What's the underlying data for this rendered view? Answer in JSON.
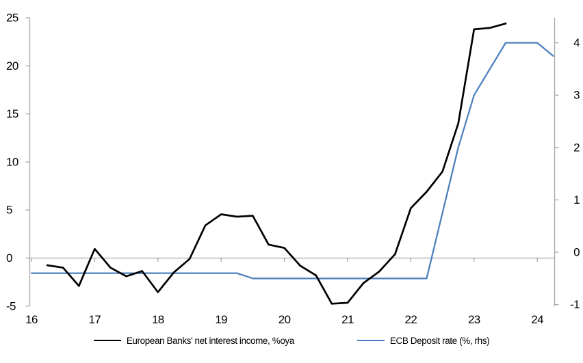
{
  "chart_data": {
    "type": "line",
    "title": "",
    "x_axis": {
      "ticks": [
        16,
        17,
        18,
        19,
        20,
        21,
        22,
        23,
        24
      ],
      "range": [
        16,
        24.3
      ],
      "tick_position": "on zero line, labels low"
    },
    "left_axis": {
      "ticks": [
        25,
        20,
        15,
        10,
        5,
        0,
        -5
      ],
      "range": [
        -5,
        25
      ]
    },
    "right_axis": {
      "ticks": [
        4,
        3,
        2,
        1,
        0,
        -1
      ],
      "range": [
        -1.05,
        4.45
      ]
    },
    "grid": "zero line only",
    "legend_position": "bottom",
    "series": [
      {
        "name": "European Banks' net interest income, %oya",
        "axis": "left",
        "color": "#000000",
        "x": [
          16.25,
          16.5,
          16.75,
          17.0,
          17.25,
          17.5,
          17.75,
          18.0,
          18.25,
          18.5,
          18.75,
          19.0,
          19.25,
          19.5,
          19.75,
          20.0,
          20.25,
          20.5,
          20.75,
          21.0,
          21.25,
          21.5,
          21.75,
          22.0,
          22.25,
          22.5,
          22.75,
          23.0,
          23.25,
          23.5
        ],
        "values": [
          -0.75,
          -1.0,
          -2.9,
          0.95,
          -1.0,
          -1.9,
          -1.35,
          -3.55,
          -1.5,
          -0.1,
          3.4,
          4.55,
          4.3,
          4.4,
          1.4,
          1.05,
          -0.8,
          -1.8,
          -4.75,
          -4.65,
          -2.6,
          -1.4,
          0.4,
          5.2,
          6.9,
          9.0,
          14.0,
          23.8,
          23.95,
          24.4
        ]
      },
      {
        "name": "ECB Deposit rate (%, rhs)",
        "axis": "right",
        "color": "#4E81BD",
        "x": [
          16.0,
          16.25,
          16.5,
          16.75,
          17.0,
          17.25,
          17.5,
          17.75,
          18.0,
          18.25,
          18.5,
          18.75,
          19.0,
          19.25,
          19.5,
          19.75,
          20.0,
          20.25,
          20.5,
          20.75,
          21.0,
          21.25,
          21.5,
          21.75,
          22.0,
          22.25,
          22.5,
          22.75,
          23.0,
          23.25,
          23.5,
          23.75,
          24.0,
          24.25
        ],
        "values": [
          -0.4,
          -0.4,
          -0.4,
          -0.4,
          -0.4,
          -0.4,
          -0.4,
          -0.4,
          -0.4,
          -0.4,
          -0.4,
          -0.4,
          -0.4,
          -0.4,
          -0.5,
          -0.5,
          -0.5,
          -0.5,
          -0.5,
          -0.5,
          -0.5,
          -0.5,
          -0.5,
          -0.5,
          -0.5,
          -0.5,
          0.75,
          2.0,
          3.0,
          3.5,
          4.0,
          4.0,
          4.0,
          3.75
        ]
      }
    ]
  },
  "colors": {
    "background": "#FFFFFF",
    "axis_gray": "#A6A6A6",
    "series_black": "#000000",
    "series_blue": "#4E81BD",
    "text": "#000000"
  }
}
